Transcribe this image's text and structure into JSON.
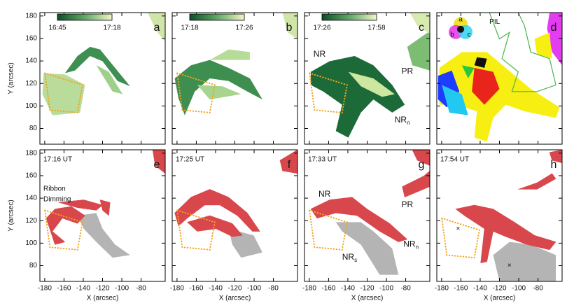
{
  "chart_data": [
    {
      "type": "map",
      "panel": "a",
      "colorbar": [
        "16:45",
        "17:18"
      ],
      "xlim": [
        -185,
        -55
      ],
      "ylim": [
        66,
        183
      ],
      "xticks": [
        -180,
        -160,
        -140,
        -120,
        -100,
        -80
      ],
      "yticks": [
        80,
        100,
        120,
        140,
        160,
        180
      ],
      "ylabel": "Y (arcsec)"
    },
    {
      "type": "map",
      "panel": "b",
      "colorbar": [
        "17:18",
        "17:26"
      ],
      "xlim": [
        -185,
        -55
      ],
      "ylim": [
        66,
        183
      ],
      "xticks": [
        -180,
        -160,
        -140,
        -120,
        -100,
        -80
      ],
      "yticks": [
        80,
        100,
        120,
        140,
        160,
        180
      ]
    },
    {
      "type": "map",
      "panel": "c",
      "colorbar": [
        "17:26",
        "17:58"
      ],
      "xlim": [
        -185,
        -55
      ],
      "ylim": [
        66,
        183
      ],
      "xticks": [
        -180,
        -160,
        -140,
        -120,
        -100,
        -80
      ],
      "yticks": [
        80,
        100,
        120,
        140,
        160,
        180
      ],
      "annotations": [
        {
          "text": "NR"
        },
        {
          "text": "PR"
        },
        {
          "text": "NR",
          "sub": "n"
        }
      ]
    },
    {
      "type": "map",
      "panel": "d",
      "wheel": [
        "a",
        "b",
        "c"
      ],
      "pil": "PIL",
      "xlim": [
        -185,
        -55
      ],
      "ylim": [
        66,
        183
      ],
      "xticks": [
        -180,
        -160,
        -140,
        -120,
        -100,
        -80
      ],
      "yticks": [
        80,
        100,
        120,
        140,
        160,
        180
      ]
    },
    {
      "type": "map",
      "panel": "e",
      "time": "17:16 UT",
      "legend": [
        {
          "name": "Ribbon",
          "color": "#d8474b"
        },
        {
          "name": "Dimming",
          "color": "#b4b4b4"
        }
      ],
      "xlim": [
        -185,
        -55
      ],
      "ylim": [
        66,
        183
      ],
      "xticks": [
        -180,
        -160,
        -140,
        -120,
        -100,
        -80
      ],
      "yticks": [
        80,
        100,
        120,
        140,
        160,
        180
      ],
      "xlabel": "X (arcsec)",
      "ylabel": "Y (arcsec)"
    },
    {
      "type": "map",
      "panel": "f",
      "time": "17:25 UT",
      "xlim": [
        -185,
        -55
      ],
      "ylim": [
        66,
        183
      ],
      "xticks": [
        -180,
        -160,
        -140,
        -120,
        -100,
        -80
      ],
      "yticks": [
        80,
        100,
        120,
        140,
        160,
        180
      ],
      "xlabel": "X (arcsec)"
    },
    {
      "type": "map",
      "panel": "g",
      "time": "17:33 UT",
      "xlim": [
        -185,
        -55
      ],
      "ylim": [
        66,
        183
      ],
      "xticks": [
        -180,
        -160,
        -140,
        -120,
        -100,
        -80
      ],
      "yticks": [
        80,
        100,
        120,
        140,
        160,
        180
      ],
      "xlabel": "X (arcsec)",
      "annotations": [
        {
          "text": "NR"
        },
        {
          "text": "PR"
        },
        {
          "text": "NR",
          "sub": "s"
        },
        {
          "text": "NR",
          "sub": "n"
        }
      ]
    },
    {
      "type": "map",
      "panel": "h",
      "time": "17:54 UT",
      "xlim": [
        -185,
        -55
      ],
      "ylim": [
        66,
        183
      ],
      "xticks": [
        -180,
        -160,
        -140,
        -120,
        -100,
        -80
      ],
      "yticks": [
        80,
        100,
        120,
        140,
        160,
        180
      ],
      "xlabel": "X (arcsec)"
    }
  ]
}
